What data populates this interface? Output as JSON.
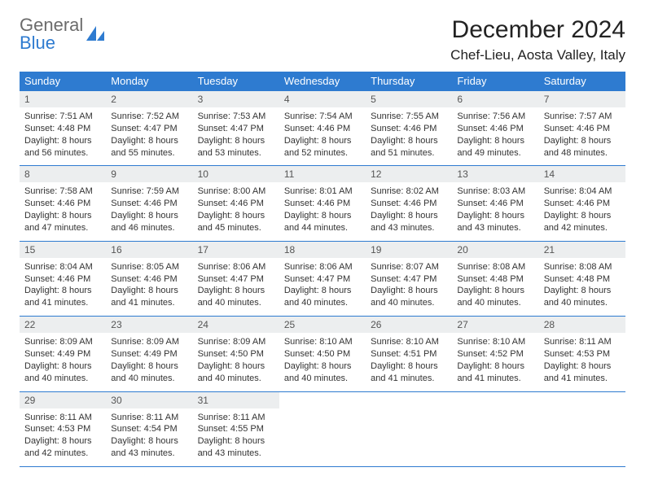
{
  "brand": {
    "part1": "General",
    "part2": "Blue",
    "icon_color": "#2e7bd0",
    "text_color_1": "#6b6b6b"
  },
  "title": "December 2024",
  "location": "Chef-Lieu, Aosta Valley, Italy",
  "colors": {
    "header_bg": "#2e7bd0",
    "header_text": "#ffffff",
    "daynum_bg": "#eceeef",
    "cell_border": "#2e7bd0",
    "body_text": "#333333"
  },
  "typography": {
    "title_fontsize": 30,
    "location_fontsize": 17,
    "header_fontsize": 13,
    "daynum_fontsize": 12,
    "body_fontsize": 11
  },
  "weekday_headers": [
    "Sunday",
    "Monday",
    "Tuesday",
    "Wednesday",
    "Thursday",
    "Friday",
    "Saturday"
  ],
  "days": [
    {
      "n": 1,
      "sunrise": "7:51 AM",
      "sunset": "4:48 PM",
      "dl": "8 hours and 56 minutes."
    },
    {
      "n": 2,
      "sunrise": "7:52 AM",
      "sunset": "4:47 PM",
      "dl": "8 hours and 55 minutes."
    },
    {
      "n": 3,
      "sunrise": "7:53 AM",
      "sunset": "4:47 PM",
      "dl": "8 hours and 53 minutes."
    },
    {
      "n": 4,
      "sunrise": "7:54 AM",
      "sunset": "4:46 PM",
      "dl": "8 hours and 52 minutes."
    },
    {
      "n": 5,
      "sunrise": "7:55 AM",
      "sunset": "4:46 PM",
      "dl": "8 hours and 51 minutes."
    },
    {
      "n": 6,
      "sunrise": "7:56 AM",
      "sunset": "4:46 PM",
      "dl": "8 hours and 49 minutes."
    },
    {
      "n": 7,
      "sunrise": "7:57 AM",
      "sunset": "4:46 PM",
      "dl": "8 hours and 48 minutes."
    },
    {
      "n": 8,
      "sunrise": "7:58 AM",
      "sunset": "4:46 PM",
      "dl": "8 hours and 47 minutes."
    },
    {
      "n": 9,
      "sunrise": "7:59 AM",
      "sunset": "4:46 PM",
      "dl": "8 hours and 46 minutes."
    },
    {
      "n": 10,
      "sunrise": "8:00 AM",
      "sunset": "4:46 PM",
      "dl": "8 hours and 45 minutes."
    },
    {
      "n": 11,
      "sunrise": "8:01 AM",
      "sunset": "4:46 PM",
      "dl": "8 hours and 44 minutes."
    },
    {
      "n": 12,
      "sunrise": "8:02 AM",
      "sunset": "4:46 PM",
      "dl": "8 hours and 43 minutes."
    },
    {
      "n": 13,
      "sunrise": "8:03 AM",
      "sunset": "4:46 PM",
      "dl": "8 hours and 43 minutes."
    },
    {
      "n": 14,
      "sunrise": "8:04 AM",
      "sunset": "4:46 PM",
      "dl": "8 hours and 42 minutes."
    },
    {
      "n": 15,
      "sunrise": "8:04 AM",
      "sunset": "4:46 PM",
      "dl": "8 hours and 41 minutes."
    },
    {
      "n": 16,
      "sunrise": "8:05 AM",
      "sunset": "4:46 PM",
      "dl": "8 hours and 41 minutes."
    },
    {
      "n": 17,
      "sunrise": "8:06 AM",
      "sunset": "4:47 PM",
      "dl": "8 hours and 40 minutes."
    },
    {
      "n": 18,
      "sunrise": "8:06 AM",
      "sunset": "4:47 PM",
      "dl": "8 hours and 40 minutes."
    },
    {
      "n": 19,
      "sunrise": "8:07 AM",
      "sunset": "4:47 PM",
      "dl": "8 hours and 40 minutes."
    },
    {
      "n": 20,
      "sunrise": "8:08 AM",
      "sunset": "4:48 PM",
      "dl": "8 hours and 40 minutes."
    },
    {
      "n": 21,
      "sunrise": "8:08 AM",
      "sunset": "4:48 PM",
      "dl": "8 hours and 40 minutes."
    },
    {
      "n": 22,
      "sunrise": "8:09 AM",
      "sunset": "4:49 PM",
      "dl": "8 hours and 40 minutes."
    },
    {
      "n": 23,
      "sunrise": "8:09 AM",
      "sunset": "4:49 PM",
      "dl": "8 hours and 40 minutes."
    },
    {
      "n": 24,
      "sunrise": "8:09 AM",
      "sunset": "4:50 PM",
      "dl": "8 hours and 40 minutes."
    },
    {
      "n": 25,
      "sunrise": "8:10 AM",
      "sunset": "4:50 PM",
      "dl": "8 hours and 40 minutes."
    },
    {
      "n": 26,
      "sunrise": "8:10 AM",
      "sunset": "4:51 PM",
      "dl": "8 hours and 41 minutes."
    },
    {
      "n": 27,
      "sunrise": "8:10 AM",
      "sunset": "4:52 PM",
      "dl": "8 hours and 41 minutes."
    },
    {
      "n": 28,
      "sunrise": "8:11 AM",
      "sunset": "4:53 PM",
      "dl": "8 hours and 41 minutes."
    },
    {
      "n": 29,
      "sunrise": "8:11 AM",
      "sunset": "4:53 PM",
      "dl": "8 hours and 42 minutes."
    },
    {
      "n": 30,
      "sunrise": "8:11 AM",
      "sunset": "4:54 PM",
      "dl": "8 hours and 43 minutes."
    },
    {
      "n": 31,
      "sunrise": "8:11 AM",
      "sunset": "4:55 PM",
      "dl": "8 hours and 43 minutes."
    }
  ],
  "first_weekday_index": 0,
  "labels": {
    "sunrise": "Sunrise:",
    "sunset": "Sunset:",
    "daylight": "Daylight:"
  }
}
